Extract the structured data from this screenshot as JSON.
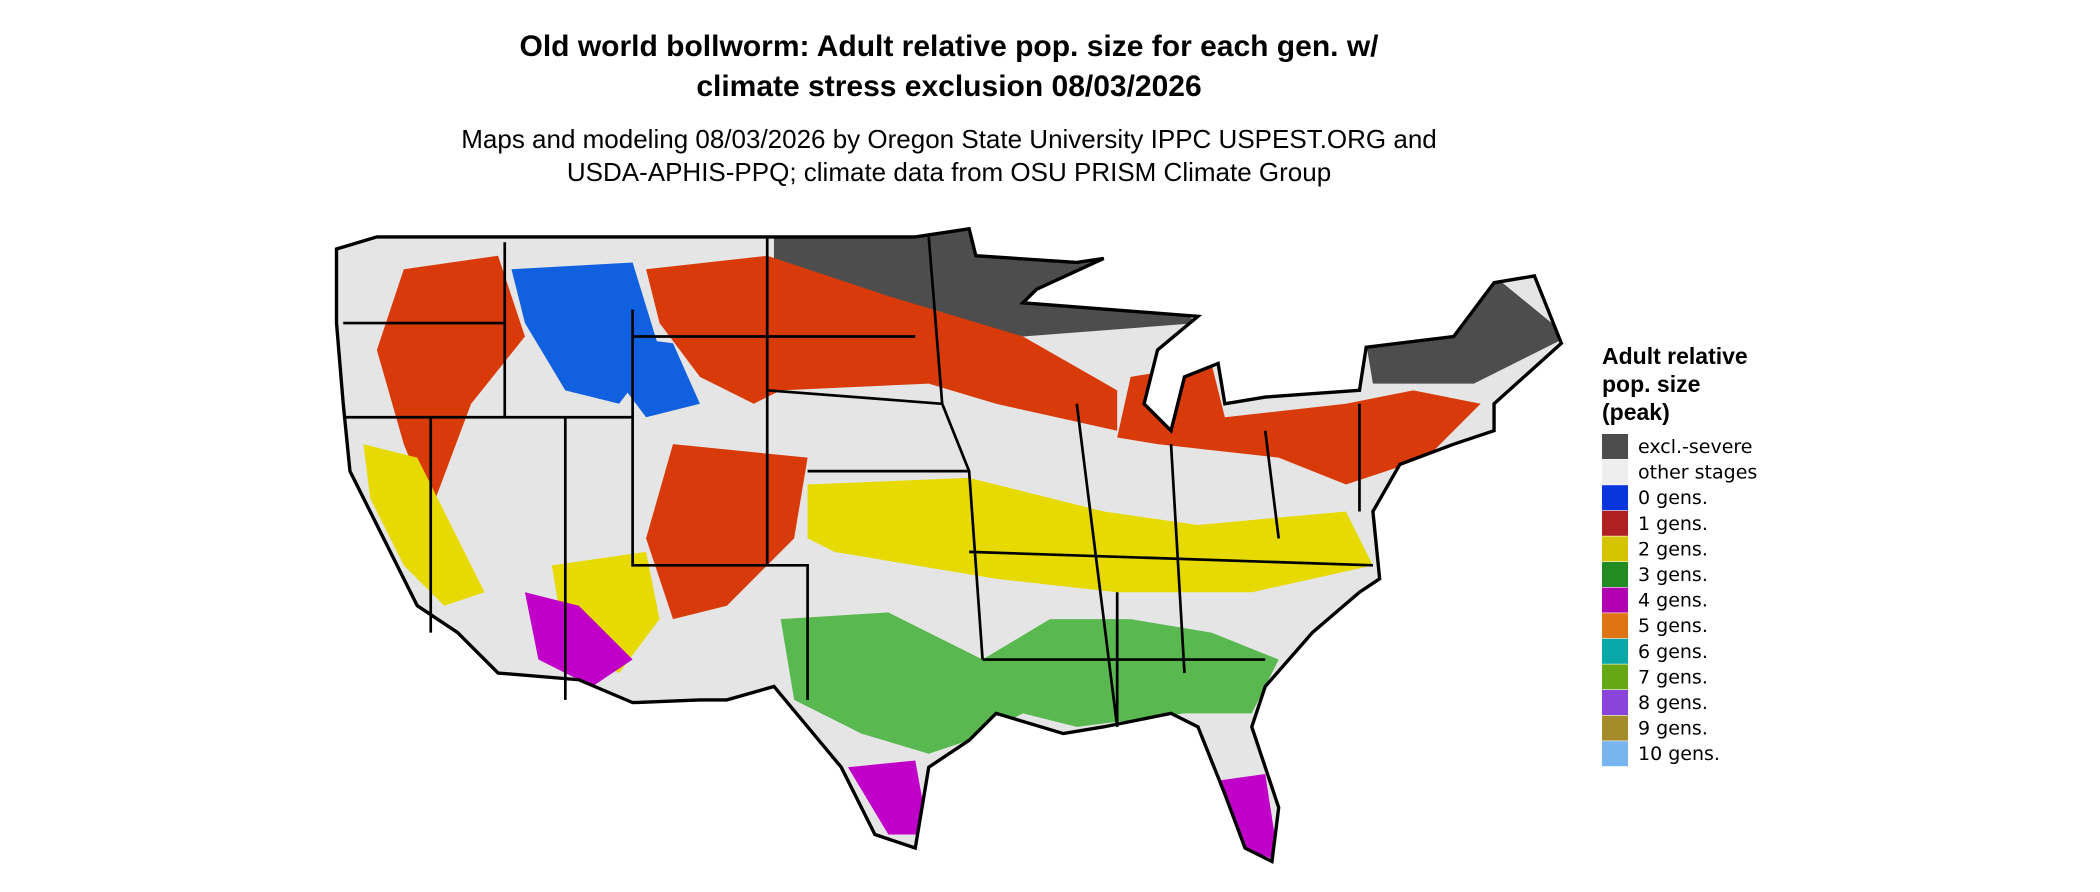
{
  "title": [
    "Old world bollworm: Adult relative pop. size for each gen. w/",
    "climate stress exclusion 08/03/2026"
  ],
  "subtitle": [
    "Maps and modeling 08/03/2026 by Oregon State University IPPC USPEST.ORG and",
    "USDA-APHIS-PPQ; climate data from OSU PRISM Climate Group"
  ],
  "legend": {
    "title": [
      "Adult relative",
      "pop. size",
      "(peak)"
    ],
    "items": [
      {
        "label": "excl.-severe",
        "color": "#4d4d4d"
      },
      {
        "label": "other stages",
        "color": "#eeeeee"
      },
      {
        "label": "0 gens.",
        "color": "#0a35dc"
      },
      {
        "label": "1 gens.",
        "color": "#b02020"
      },
      {
        "label": "2 gens.",
        "color": "#d6c400"
      },
      {
        "label": "3 gens.",
        "color": "#228b22"
      },
      {
        "label": "4 gens.",
        "color": "#b000b0"
      },
      {
        "label": "5 gens.",
        "color": "#de7412"
      },
      {
        "label": "6 gens.",
        "color": "#0aa8a8"
      },
      {
        "label": "7 gens.",
        "color": "#66a814"
      },
      {
        "label": "8 gens.",
        "color": "#8a44dc"
      },
      {
        "label": "9 gens.",
        "color": "#a48c2a"
      },
      {
        "label": "10 gens.",
        "color": "#78b4ee"
      }
    ]
  }
}
